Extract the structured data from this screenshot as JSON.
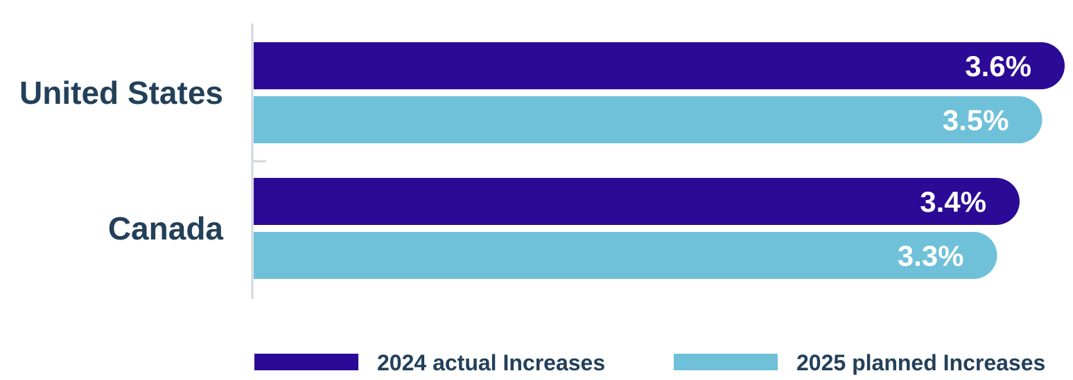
{
  "chart_data": {
    "type": "bar",
    "orientation": "horizontal",
    "categories": [
      "United States",
      "Canada"
    ],
    "series": [
      {
        "name": "2024 actual Increases",
        "values": [
          3.6,
          3.4
        ],
        "labels": [
          "3.6%",
          "3.4%"
        ],
        "color": "#2b0a96"
      },
      {
        "name": "2025 planned Increases",
        "values": [
          3.5,
          3.3
        ],
        "labels": [
          "3.5%",
          "3.3%"
        ],
        "color": "#6ec1d8"
      }
    ],
    "title": "",
    "xlabel": "",
    "ylabel": "",
    "grid": false,
    "legend": "bottom",
    "colors": {
      "label_text": "#23405a",
      "axis_line": "#d0d6de",
      "value_text": "#ffffff"
    }
  }
}
